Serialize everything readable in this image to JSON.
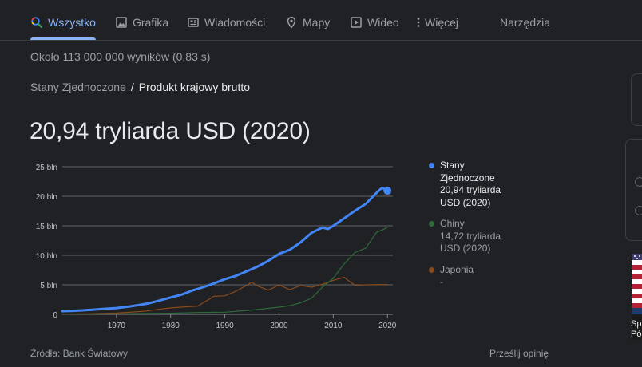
{
  "tabs": [
    {
      "label": "Wszystko",
      "icon": "search-icon",
      "active": true
    },
    {
      "label": "Grafika",
      "icon": "image-icon",
      "active": false
    },
    {
      "label": "Wiadomości",
      "icon": "news-icon",
      "active": false
    },
    {
      "label": "Mapy",
      "icon": "map-pin-icon",
      "active": false
    },
    {
      "label": "Wideo",
      "icon": "play-icon",
      "active": false
    },
    {
      "label": "Więcej",
      "icon": "more-vert-icon",
      "active": false
    }
  ],
  "tools_label": "Narzędzia",
  "result_stats": "Około 113 000 000 wyników (0,83 s)",
  "breadcrumb": {
    "parent": "Stany Zjednoczone",
    "separator": "/",
    "current": "Produkt krajowy brutto"
  },
  "headline": "20,94 tryliarda USD (2020)",
  "legend": [
    {
      "name": "Stany Zjednoczone",
      "value": "20,94 tryliarda USD (2020)",
      "color": "#4285f4"
    },
    {
      "name": "Chiny",
      "value": "14,72 tryliarda USD (2020)",
      "color": "#2e6a3a"
    },
    {
      "name": "Japonia",
      "value": "-",
      "color": "#8a4b1c"
    }
  ],
  "source": "Źródła: Bank Światowy",
  "feedback": "Prześlij opinię",
  "side_caption": "Sp\nPó",
  "chart_data": {
    "type": "line",
    "ylim": [
      0,
      25
    ],
    "xlim": [
      1960,
      2021
    ],
    "y_ticks": [
      0,
      5,
      10,
      15,
      20,
      25
    ],
    "y_tick_labels": [
      "0",
      "5 bln",
      "10 bln",
      "15 bln",
      "20 bln",
      "25 bln"
    ],
    "x_ticks": [
      1970,
      1980,
      1990,
      2000,
      2010,
      2020
    ],
    "x_tick_labels": [
      "1970",
      "1980",
      "1990",
      "2000",
      "2010",
      "2020"
    ],
    "grid": true,
    "series": [
      {
        "name": "Stany Zjednoczone",
        "color": "#4285f4",
        "x": [
          1960,
          1962,
          1964,
          1966,
          1968,
          1970,
          1972,
          1974,
          1976,
          1978,
          1980,
          1982,
          1984,
          1986,
          1988,
          1990,
          1992,
          1994,
          1996,
          1998,
          2000,
          2002,
          2004,
          2006,
          2008,
          2009,
          2010,
          2012,
          2014,
          2016,
          2018,
          2019,
          2020
        ],
        "y": [
          0.54,
          0.6,
          0.69,
          0.81,
          0.94,
          1.07,
          1.28,
          1.55,
          1.88,
          2.35,
          2.86,
          3.34,
          4.04,
          4.59,
          5.24,
          5.96,
          6.52,
          7.29,
          8.07,
          9.06,
          10.25,
          10.94,
          12.21,
          13.81,
          14.71,
          14.45,
          14.99,
          16.25,
          17.55,
          18.71,
          20.58,
          21.43,
          20.94
        ],
        "highlight_last_point": true
      },
      {
        "name": "Chiny",
        "color": "#2e6a3a",
        "x": [
          1960,
          1965,
          1970,
          1975,
          1980,
          1985,
          1990,
          1995,
          2000,
          2002,
          2004,
          2006,
          2008,
          2010,
          2012,
          2014,
          2016,
          2018,
          2019,
          2020
        ],
        "y": [
          0.06,
          0.07,
          0.09,
          0.16,
          0.19,
          0.31,
          0.36,
          0.73,
          1.21,
          1.47,
          1.96,
          2.75,
          4.59,
          6.09,
          8.53,
          10.48,
          11.23,
          13.89,
          14.28,
          14.72
        ]
      },
      {
        "name": "Japonia",
        "color": "#8a4b1c",
        "x": [
          1960,
          1965,
          1970,
          1975,
          1980,
          1985,
          1988,
          1990,
          1992,
          1994,
          1995,
          1996,
          1998,
          2000,
          2002,
          2004,
          2006,
          2008,
          2010,
          2012,
          2014,
          2016,
          2018,
          2020
        ],
        "y": [
          0.04,
          0.09,
          0.21,
          0.52,
          1.1,
          1.4,
          3.07,
          3.13,
          3.9,
          4.9,
          5.45,
          4.83,
          4.1,
          4.97,
          4.18,
          4.89,
          4.6,
          5.1,
          5.76,
          6.27,
          4.9,
          5.0,
          5.04,
          5.06
        ]
      }
    ]
  }
}
